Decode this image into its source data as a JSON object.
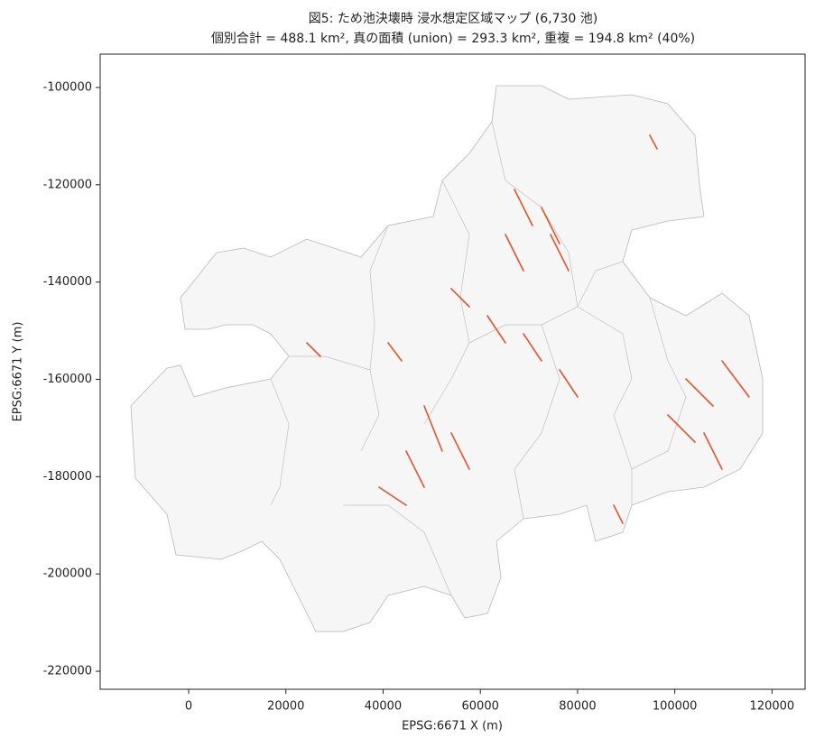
{
  "chart_data": {
    "type": "map",
    "title": "図5: ため池決壊時 浸水想定区域マップ (6,730 池)",
    "subtitle": "個別合計 = 488.1 km², 真の面積 (union) = 293.3 km², 重複 = 194.8 km² (40%)",
    "xlabel": "EPSG:6671 X (m)",
    "ylabel": "EPSG:6671 Y (m)",
    "xlim": [
      -18200,
      126800
    ],
    "ylim": [
      -223700,
      -93150
    ],
    "xticks": [
      0,
      20000,
      40000,
      60000,
      80000,
      100000,
      120000
    ],
    "yticks": [
      -100000,
      -120000,
      -140000,
      -160000,
      -180000,
      -200000,
      -220000
    ]
  }
}
